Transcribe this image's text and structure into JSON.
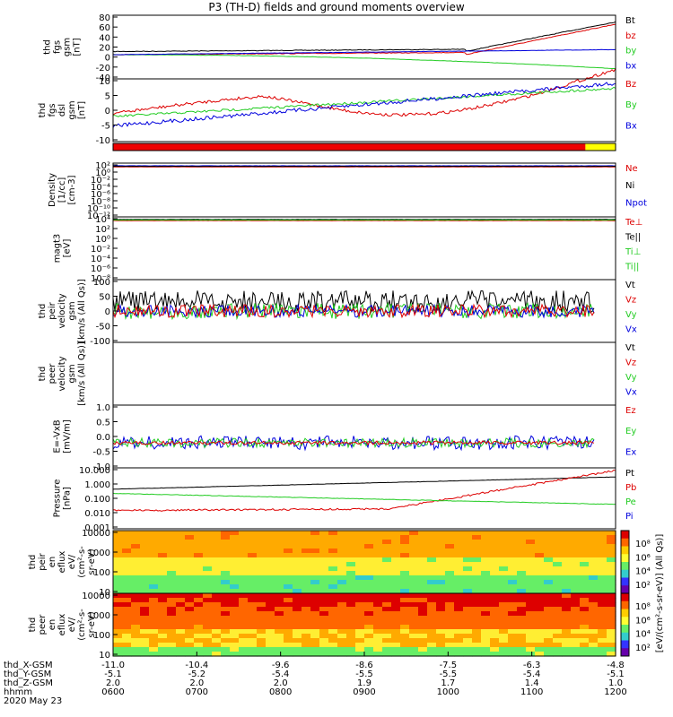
{
  "title": "P3 (TH-D) fields and ground moments overview",
  "date": "2020 May 23",
  "colors": {
    "black": "#000000",
    "red": "#dd0000",
    "green": "#22cc22",
    "blue": "#0000dd",
    "yellow": "#ffff00"
  },
  "panels": [
    {
      "ylabel": [
        "thd",
        "fgs",
        "gsm",
        "[nT]"
      ],
      "ticks": [
        "80",
        "60",
        "40",
        "20",
        "0",
        "-20",
        "-40"
      ],
      "legend": [
        {
          "t": "Bt",
          "c": "black"
        },
        {
          "t": "bz",
          "c": "red"
        },
        {
          "t": "by",
          "c": "green"
        },
        {
          "t": "bx",
          "c": "blue"
        }
      ]
    },
    {
      "ylabel": [
        "thd",
        "fgs",
        "dsl",
        "gsm",
        "[nT]"
      ],
      "ticks": [
        "10",
        "5",
        "0",
        "-5",
        "-10"
      ],
      "legend": [
        {
          "t": "Bz",
          "c": "red"
        },
        {
          "t": "By",
          "c": "green"
        },
        {
          "t": "Bx",
          "c": "blue"
        }
      ]
    },
    {
      "ylabel": [],
      "ticks": [],
      "legend": []
    },
    {
      "ylabel": [
        "Density",
        "[1/cc]",
        "[cm-3]"
      ],
      "ticks": [
        "10²",
        "10⁰",
        "10⁻²",
        "10⁻⁴",
        "10⁻⁶",
        "10⁻⁸",
        "10⁻¹⁰",
        "10⁻¹²"
      ],
      "legend": [
        {
          "t": "Ne",
          "c": "red"
        },
        {
          "t": "Ni",
          "c": "black"
        },
        {
          "t": "Npot",
          "c": "blue"
        }
      ]
    },
    {
      "ylabel": [
        "magt3",
        "[eV]"
      ],
      "ticks": [
        "10⁴",
        "10²",
        "10⁰",
        "10⁻²",
        "10⁻⁴",
        "10⁻⁶",
        "10⁻⁸"
      ],
      "legend": [
        {
          "t": "Te⊥",
          "c": "red"
        },
        {
          "t": "Te||",
          "c": "black"
        },
        {
          "t": "Ti⊥",
          "c": "green"
        },
        {
          "t": "Ti||",
          "c": "green"
        }
      ]
    },
    {
      "ylabel": [
        "thd",
        "peir",
        "velocity",
        "gsm",
        "[km/s (All Qs)]"
      ],
      "ticks": [
        "100",
        "50",
        "0",
        "-50",
        "-100"
      ],
      "legend": [
        {
          "t": "Vt",
          "c": "black"
        },
        {
          "t": "Vz",
          "c": "red"
        },
        {
          "t": "Vy",
          "c": "green"
        },
        {
          "t": "Vx",
          "c": "blue"
        }
      ]
    },
    {
      "ylabel": [
        "thd",
        "peer",
        "velocity",
        "gsm",
        "[km/s (All Qs)]"
      ],
      "ticks": [],
      "legend": [
        {
          "t": "Vt",
          "c": "black"
        },
        {
          "t": "Vz",
          "c": "red"
        },
        {
          "t": "Vy",
          "c": "green"
        },
        {
          "t": "Vx",
          "c": "blue"
        }
      ]
    },
    {
      "ylabel": [
        "E=-VxB",
        "[mV/m]"
      ],
      "ticks": [
        "1.0",
        "0.5",
        "0.0",
        "-0.5",
        "-1.0"
      ],
      "legend": [
        {
          "t": "Ez",
          "c": "red"
        },
        {
          "t": "Ey",
          "c": "green"
        },
        {
          "t": "Ex",
          "c": "blue"
        }
      ]
    },
    {
      "ylabel": [
        "Pressure",
        "[nPa]"
      ],
      "ticks": [
        "10.000",
        "1.000",
        "0.100",
        "0.010",
        "0.001"
      ],
      "legend": [
        {
          "t": "Pt",
          "c": "black"
        },
        {
          "t": "Pb",
          "c": "red"
        },
        {
          "t": "Pe",
          "c": "green"
        },
        {
          "t": "Pi",
          "c": "blue"
        }
      ]
    },
    {
      "ylabel": [
        "thd",
        "peir",
        "en",
        "eflux",
        "eV/",
        "(cm²-s-",
        "sr-eV)"
      ],
      "ticks": [
        "10000",
        "1000",
        "100",
        "10"
      ],
      "legend": []
    },
    {
      "ylabel": [
        "thd",
        "peer",
        "en",
        "eflux",
        "eV/",
        "(cm²-s-",
        "sr-eV)"
      ],
      "ticks": [
        "10000",
        "1000",
        "100",
        "10"
      ],
      "legend": []
    }
  ],
  "colorbar": {
    "label": "[eV/(cm²-s-sr-eV)] (All Qs)]",
    "ticks_top": [
      "10⁸",
      "10⁶",
      "10⁴",
      "10²"
    ],
    "ticks_bottom": [
      "10⁸",
      "10⁶",
      "10⁴",
      "10²"
    ]
  },
  "xaxis": {
    "rows": [
      {
        "label": "thd_X-GSM",
        "vals": [
          "-11.0",
          "-10.4",
          "-9.6",
          "-8.6",
          "-7.5",
          "-6.3",
          "-4.8"
        ]
      },
      {
        "label": "thd_Y-GSM",
        "vals": [
          "-5.1",
          "-5.2",
          "-5.4",
          "-5.5",
          "-5.5",
          "-5.4",
          "-5.1"
        ]
      },
      {
        "label": "thd_Z-GSM",
        "vals": [
          "2.0",
          "2.0",
          "2.0",
          "1.9",
          "1.7",
          "1.4",
          "1.0"
        ]
      },
      {
        "label": "hhmm",
        "vals": [
          "0600",
          "0700",
          "0800",
          "0900",
          "1000",
          "1100",
          "1200"
        ]
      }
    ]
  },
  "chart_data": [
    {
      "type": "line",
      "title": "P3 (TH-D) fields and ground moments overview",
      "ylim": [
        -40,
        80
      ],
      "x": [
        "0600",
        "0700",
        "0800",
        "0900",
        "1000",
        "1100",
        "1200"
      ],
      "series": [
        {
          "name": "Bt",
          "values": [
            8,
            10,
            9,
            10,
            15,
            30,
            68
          ]
        },
        {
          "name": "bz",
          "values": [
            5,
            8,
            6,
            8,
            12,
            28,
            65
          ]
        },
        {
          "name": "by",
          "values": [
            6,
            5,
            4,
            0,
            -5,
            -15,
            -25
          ]
        },
        {
          "name": "bx",
          "values": [
            3,
            4,
            5,
            5,
            6,
            8,
            10
          ]
        }
      ]
    },
    {
      "type": "line",
      "ylim": [
        -12,
        10
      ],
      "x": [
        "0600",
        "0700",
        "0800",
        "0900",
        "1000",
        "1100",
        "1200"
      ],
      "series": [
        {
          "name": "Bz",
          "values": [
            -1,
            4,
            3,
            -2,
            -3,
            -2,
            8
          ]
        },
        {
          "name": "By",
          "values": [
            -2,
            -2,
            1,
            3,
            4,
            5,
            7
          ]
        },
        {
          "name": "Bx",
          "values": [
            -4,
            -6,
            -3,
            0,
            3,
            5,
            9
          ]
        }
      ]
    },
    {
      "type": "line",
      "x": [
        "0600",
        "0700",
        "0800",
        "0900",
        "1000",
        "1100",
        "1200"
      ],
      "series": [
        {
          "name": "Pt",
          "values": [
            0.35,
            0.45,
            0.5,
            0.6,
            0.8,
            1.1,
            1.8
          ]
        },
        {
          "name": "Pb",
          "values": [
            0.03,
            0.035,
            0.04,
            0.05,
            0.1,
            0.4,
            1.5
          ]
        },
        {
          "name": "Pe",
          "values": [
            0.25,
            0.22,
            0.2,
            0.18,
            0.15,
            0.12,
            0.07
          ]
        }
      ]
    }
  ]
}
